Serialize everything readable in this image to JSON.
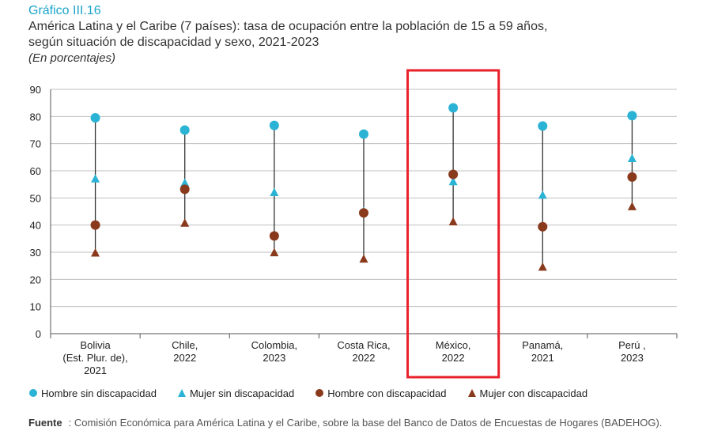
{
  "figure_label": "Gráfico III.16",
  "title_line1": "América Latina y el Caribe (7 países): tasa de ocupación entre la población de 15 a 59 años,",
  "title_line2": "según situación de discapacidad y sexo, 2021-2023",
  "subtitle": "(En porcentajes)",
  "source_label": "Fuente",
  "source_text": ": Comisión Económica para América Latina y el Caribe, sobre la base del Banco de Datos de Encuestas de Hogares (BADEHOG).",
  "colors": {
    "sin": "#2bb3d6",
    "con": "#8a3a1c",
    "connector": "#333333",
    "grid": "#bfbfbf",
    "highlight": "#e8202a"
  },
  "chart_data": {
    "type": "scatter",
    "categories": [
      [
        "Bolivia",
        "(Est. Plur. de),",
        "2021"
      ],
      [
        "Chile,",
        "2022"
      ],
      [
        "Colombia,",
        "2023"
      ],
      [
        "Costa Rica,",
        "2022"
      ],
      [
        "México,",
        "2022"
      ],
      [
        "Panamá,",
        "2021"
      ],
      [
        "Perú ,",
        "2023"
      ]
    ],
    "series": [
      {
        "name": "Hombre sin discapacidad",
        "marker": "circle",
        "color": "#2bb3d6",
        "values": [
          79.5,
          75,
          76.7,
          73.5,
          83.2,
          76.5,
          80.3
        ]
      },
      {
        "name": "Mujer sin discapacidad",
        "marker": "triangle",
        "color": "#2bb3d6",
        "values": [
          57,
          55.5,
          52,
          45,
          56,
          51,
          64.5
        ]
      },
      {
        "name": "Hombre con discapacidad",
        "marker": "circle",
        "color": "#8a3a1c",
        "values": [
          40,
          53.2,
          36,
          44.5,
          58.7,
          39.4,
          57.7
        ]
      },
      {
        "name": "Mujer con discapacidad",
        "marker": "triangle",
        "color": "#8a3a1c",
        "values": [
          29.7,
          40.7,
          29.8,
          27.5,
          41.2,
          24.5,
          46.8
        ]
      }
    ],
    "ylim": [
      0,
      90
    ],
    "yticks": [
      0,
      10,
      20,
      30,
      40,
      50,
      60,
      70,
      80,
      90
    ],
    "grid": true,
    "highlight_category": 4
  }
}
